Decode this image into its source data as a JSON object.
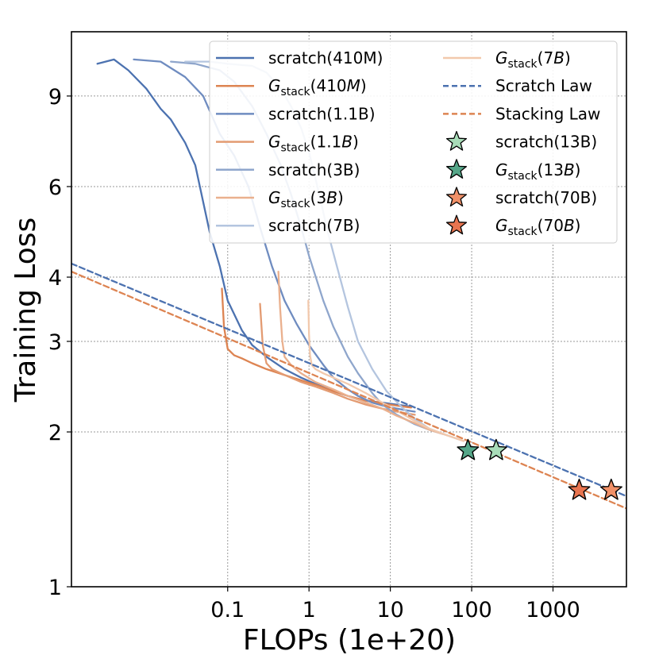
{
  "chart_data": {
    "type": "line",
    "x_scale": "log",
    "y_scale": "log",
    "xlim": [
      0.0012,
      8000
    ],
    "ylim": [
      1,
      12
    ],
    "xlabel": "FLOPs (1e+20)",
    "ylabel": "Training Loss",
    "x_ticks": [
      {
        "value": 0.1,
        "label": "0.1"
      },
      {
        "value": 1,
        "label": "1"
      },
      {
        "value": 10,
        "label": "10"
      },
      {
        "value": 100,
        "label": "100"
      },
      {
        "value": 1000,
        "label": "1000"
      }
    ],
    "y_ticks": [
      {
        "value": 1,
        "label": "1"
      },
      {
        "value": 2,
        "label": "2"
      },
      {
        "value": 3,
        "label": "3"
      },
      {
        "value": 4,
        "label": "4"
      },
      {
        "value": 6,
        "label": "6"
      },
      {
        "value": 9,
        "label": "9"
      }
    ],
    "grid": true,
    "legend_position": "top-right",
    "series": [
      {
        "name": "scratch(410M)",
        "legend": {
          "main": "scratch(410M)"
        },
        "color": "#4c72b0",
        "style": "solid",
        "x": [
          0.0025,
          0.004,
          0.006,
          0.01,
          0.015,
          0.02,
          0.03,
          0.04,
          0.05,
          0.06,
          0.08,
          0.1,
          0.15,
          0.2,
          0.3,
          0.5,
          0.8,
          1.2,
          2,
          3,
          5,
          8,
          12,
          18
        ],
        "y": [
          10.4,
          10.6,
          10.1,
          9.3,
          8.5,
          8.1,
          7.3,
          6.6,
          5.6,
          4.9,
          4.2,
          3.6,
          3.15,
          2.95,
          2.8,
          2.65,
          2.55,
          2.48,
          2.4,
          2.35,
          2.3,
          2.28,
          2.26,
          2.24
        ]
      },
      {
        "name": "Gstack(410M)",
        "legend": {
          "main": "G",
          "sub": "stack",
          "rest": "(410",
          "italic": "M",
          "close": ")"
        },
        "color": "#dd8452",
        "style": "solid",
        "x": [
          0.085,
          0.09,
          0.1,
          0.12,
          0.15,
          0.2,
          0.3,
          0.5,
          0.8,
          1.2,
          2,
          3,
          5,
          8,
          12,
          18
        ],
        "y": [
          3.8,
          3.2,
          2.9,
          2.82,
          2.78,
          2.72,
          2.65,
          2.58,
          2.52,
          2.47,
          2.4,
          2.35,
          2.3,
          2.27,
          2.25,
          2.23
        ]
      },
      {
        "name": "scratch(1.1B)",
        "legend": {
          "main": "scratch(1.1B)"
        },
        "color": "#6f8cc0",
        "style": "solid",
        "x": [
          0.007,
          0.015,
          0.03,
          0.05,
          0.08,
          0.12,
          0.18,
          0.25,
          0.35,
          0.5,
          0.7,
          1,
          1.5,
          2,
          3,
          4,
          6,
          9,
          14,
          20
        ],
        "y": [
          10.6,
          10.5,
          9.8,
          9.0,
          7.6,
          6.9,
          6.0,
          5.0,
          4.2,
          3.6,
          3.25,
          2.95,
          2.7,
          2.55,
          2.42,
          2.35,
          2.28,
          2.24,
          2.21,
          2.19
        ]
      },
      {
        "name": "Gstack(1.1B)",
        "legend": {
          "main": "G",
          "sub": "stack",
          "rest": "(1.1",
          "italic": "B",
          "close": ")"
        },
        "color": "#e39b72",
        "style": "solid",
        "x": [
          0.25,
          0.27,
          0.3,
          0.35,
          0.45,
          0.6,
          0.8,
          1.2,
          2,
          3,
          5,
          8,
          12,
          20
        ],
        "y": [
          3.55,
          2.95,
          2.72,
          2.65,
          2.6,
          2.55,
          2.5,
          2.45,
          2.38,
          2.32,
          2.26,
          2.22,
          2.19,
          2.16
        ]
      },
      {
        "name": "scratch(3B)",
        "legend": {
          "main": "scratch(3B)"
        },
        "color": "#8fa6cc",
        "style": "solid",
        "x": [
          0.02,
          0.04,
          0.08,
          0.12,
          0.2,
          0.3,
          0.45,
          0.6,
          0.8,
          1,
          1.5,
          2,
          3,
          4,
          6,
          8,
          12,
          20,
          30,
          45
        ],
        "y": [
          10.5,
          10.4,
          10.1,
          9.6,
          8.6,
          7.6,
          6.6,
          5.8,
          5.0,
          4.4,
          3.6,
          3.2,
          2.8,
          2.6,
          2.38,
          2.26,
          2.16,
          2.07,
          2.02,
          1.98
        ]
      },
      {
        "name": "Gstack(3B)",
        "legend": {
          "main": "G",
          "sub": "stack",
          "rest": "(3",
          "italic": "B",
          "close": ")"
        },
        "color": "#eab08e",
        "style": "solid",
        "x": [
          0.42,
          0.44,
          0.47,
          0.5,
          0.6,
          0.8,
          1.2,
          2,
          3,
          5,
          8,
          12,
          20,
          30,
          50
        ],
        "y": [
          4.1,
          3.5,
          3.0,
          2.8,
          2.7,
          2.6,
          2.5,
          2.42,
          2.35,
          2.28,
          2.22,
          2.15,
          2.08,
          2.02,
          1.97
        ]
      },
      {
        "name": "scratch(7B)",
        "legend": {
          "main": "scratch(7B)"
        },
        "color": "#b4c5df",
        "style": "solid",
        "x": [
          0.03,
          0.06,
          0.1,
          0.2,
          0.3,
          0.45,
          0.6,
          0.8,
          1,
          1.3,
          1.7,
          2.2,
          3,
          4,
          6,
          9,
          14,
          20,
          30,
          50,
          80
        ],
        "y": [
          10.5,
          10.5,
          10.4,
          10.3,
          10.0,
          9.3,
          8.6,
          7.8,
          7.0,
          5.9,
          4.9,
          4.2,
          3.5,
          3.0,
          2.65,
          2.4,
          2.23,
          2.12,
          2.03,
          1.97,
          1.92
        ]
      },
      {
        "name": "Gstack(7B)",
        "legend": {
          "main": "G",
          "sub": "stack",
          "rest": "(7",
          "italic": "B",
          "close": ")"
        },
        "color": "#f2c9ad",
        "style": "solid",
        "x": [
          0.98,
          1.0,
          1.03,
          1.08,
          1.2,
          1.5,
          2,
          3,
          5,
          8,
          12,
          20,
          30,
          50,
          80
        ],
        "y": [
          3.6,
          3.1,
          2.82,
          2.7,
          2.65,
          2.6,
          2.55,
          2.48,
          2.38,
          2.28,
          2.2,
          2.1,
          2.03,
          1.97,
          1.92
        ]
      },
      {
        "name": "Scratch Law",
        "legend": {
          "main": "Scratch Law"
        },
        "color": "#4c72b0",
        "style": "dashed",
        "x": [
          0.0012,
          8000
        ],
        "y": [
          4.25,
          1.5
        ]
      },
      {
        "name": "Stacking Law",
        "legend": {
          "main": "Stacking Law"
        },
        "color": "#dd8452",
        "style": "dashed",
        "x": [
          0.0012,
          8000
        ],
        "y": [
          4.1,
          1.42
        ]
      }
    ],
    "markers": [
      {
        "name": "scratch(13B)",
        "legend": {
          "main": "scratch(13B)"
        },
        "x": 200,
        "y": 1.84,
        "color": "#a8dcb8"
      },
      {
        "name": "Gstack(13B)",
        "legend": {
          "main": "G",
          "sub": "stack",
          "rest": "(13",
          "italic": "B",
          "close": ")"
        },
        "x": 90,
        "y": 1.84,
        "color": "#55a688"
      },
      {
        "name": "scratch(70B)",
        "legend": {
          "main": "scratch(70B)"
        },
        "x": 5200,
        "y": 1.54,
        "color": "#f09068"
      },
      {
        "name": "Gstack(70B)",
        "legend": {
          "main": "G",
          "sub": "stack",
          "rest": "(70",
          "italic": "B",
          "close": ")"
        },
        "x": 2100,
        "y": 1.54,
        "color": "#e8744f"
      }
    ],
    "legend_columns": [
      [
        "scratch(410M)",
        "Gstack(410M)",
        "scratch(1.1B)",
        "Gstack(1.1B)",
        "scratch(3B)",
        "Gstack(3B)",
        "scratch(7B)"
      ],
      [
        "Gstack(7B)",
        "Scratch Law",
        "Stacking Law",
        "scratch(13B)",
        "Gstack(13B)",
        "scratch(70B)",
        "Gstack(70B)"
      ]
    ]
  }
}
